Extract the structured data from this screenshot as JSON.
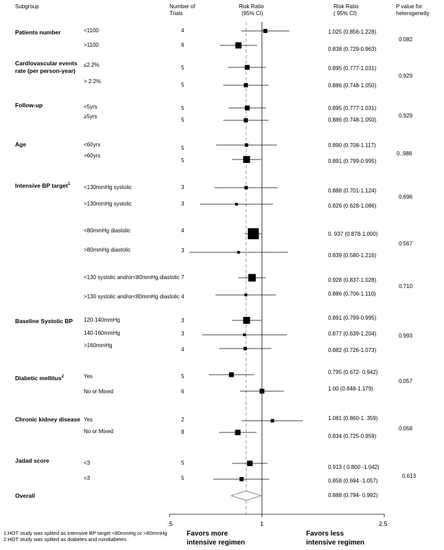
{
  "headers": {
    "subgroup": "Subgroup",
    "trials_line1": "Number of",
    "trials_line2": "Trials",
    "rr_plot_line1": "Risk Ratio",
    "rr_plot_line2": "(95% CI)",
    "rr_text_line1": "Risk Ratio",
    "rr_text_line2": "( 95% CI)",
    "p_line1": "P value for",
    "p_line2": "heterogeneity"
  },
  "groups": [
    {
      "label": "Patients number"
    },
    {
      "label": "Cardiovascular events",
      "label2": "rate (per person-year)"
    },
    {
      "label": "Follow-up"
    },
    {
      "label": "Age"
    },
    {
      "label": "Intensive BP target",
      "sup": "1"
    },
    {
      "label": "Baseline Systolic BP"
    },
    {
      "label": "Diabetic mellitus",
      "sup": "2"
    },
    {
      "label": "Chronic kidney disease"
    },
    {
      "label": "Jadad score"
    },
    {
      "label": "Overall"
    }
  ],
  "p_values": [
    "0.082",
    "0.929",
    "0.929",
    "0..988",
    "0.696",
    "0.567",
    "0.710",
    "0.993",
    "0.057",
    "0.058",
    "0.613"
  ],
  "chart_data": {
    "type": "forest",
    "x_scale": "log",
    "xlim": [
      0.5,
      2.5
    ],
    "x_ticks": [
      ".5",
      "1",
      "2.5"
    ],
    "null_line": 1,
    "pooled_line": 0.888,
    "rows": [
      {
        "sub": "<1100",
        "trials": "4",
        "rr": 1.025,
        "lo": 0.856,
        "hi": 1.228,
        "ci_text": "1.025  (0.856-1.228)"
      },
      {
        "sub": ">1100",
        "trials": "6",
        "rr": 0.838,
        "lo": 0.729,
        "hi": 0.963,
        "ci_text": "0.838  (0.729-0.963)"
      },
      {
        "sub": "≤2.2%",
        "trials": "5",
        "rr": 0.895,
        "lo": 0.777,
        "hi": 1.031,
        "ci_text": "0.895  (0.777-1.031)"
      },
      {
        "sub": "> 2.2%",
        "trials": "5",
        "rr": 0.886,
        "lo": 0.748,
        "hi": 1.05,
        "ci_text": "0.886  (0.748-1.050)"
      },
      {
        "sub": "<5yrs",
        "trials": "5",
        "rr": 0.895,
        "lo": 0.777,
        "hi": 1.031,
        "ci_text": "0.895  (0.777-1.031)"
      },
      {
        "sub": "≥5yrs",
        "trials": "5",
        "rr": 0.886,
        "lo": 0.748,
        "hi": 1.05,
        "ci_text": "0.886  (0.748-1.050)"
      },
      {
        "sub": "<60yrs",
        "trials": "5",
        "rr": 0.89,
        "lo": 0.708,
        "hi": 1.117,
        "ci_text": "0.890  (0.708-1.117)"
      },
      {
        "sub": ">60yrs",
        "trials": "5",
        "rr": 0.891,
        "lo": 0.799,
        "hi": 0.995,
        "ci_text": "0.891  (0.799-0.995)"
      },
      {
        "sub": "<130mmHg systolic",
        "trials": "3",
        "rr": 0.888,
        "lo": 0.701,
        "hi": 1.124,
        "ci_text": "0.888  (0.701-1.124)"
      },
      {
        "sub": ">130mmHg systolic",
        "trials": "3",
        "rr": 0.826,
        "lo": 0.628,
        "hi": 1.086,
        "ci_text": "0.826  (0.628-1.086)"
      },
      {
        "sub": "<80mmHg diastolic",
        "trials": "4",
        "rr": 0.937,
        "lo": 0.878,
        "hi": 1.0,
        "ci_text": "0. 937  (0.878-1.000)"
      },
      {
        "sub": ">80mmHg diastolic",
        "trials": "3",
        "rr": 0.839,
        "lo": 0.58,
        "hi": 1.216,
        "ci_text": "0.839  (0.580-1.216)"
      },
      {
        "sub": "<130 systolic and/or<80mmHg diastolic",
        "trials": "7",
        "rr": 0.928,
        "lo": 0.837,
        "hi": 1.028,
        "ci_text": "0.928  (0.837-1.028)"
      },
      {
        "sub": ">130 systolic and/or<80mmHg diastolic",
        "trials": "4",
        "rr": 0.886,
        "lo": 0.706,
        "hi": 1.11,
        "ci_text": "0.886  (0.706-1.110)"
      },
      {
        "sub": "120-140mmHg",
        "trials": "3",
        "rr": 0.891,
        "lo": 0.799,
        "hi": 0.995,
        "ci_text": "0.891  (0.799-0.995)"
      },
      {
        "sub": "140-160mmHg",
        "trials": "3",
        "rr": 0.877,
        "lo": 0.639,
        "hi": 1.204,
        "ci_text": "0.877  (0.639-1.204)"
      },
      {
        "sub": ">160mmHg",
        "trials": "4",
        "rr": 0.882,
        "lo": 0.726,
        "hi": 1.073,
        "ci_text": "0.882  (0.726-1.073)"
      },
      {
        "sub": "Yes",
        "trials": "5",
        "rr": 0.795,
        "lo": 0.672,
        "hi": 0.942,
        "ci_text": "0.795  (0.672- 0.942)"
      },
      {
        "sub": "No or Mixed",
        "trials": "6",
        "rr": 1.0,
        "lo": 0.848,
        "hi": 1.179,
        "ci_text": "1.00  (0.848-1.179)"
      },
      {
        "sub": "Yes",
        "trials": "2",
        "rr": 1.081,
        "lo": 0.86,
        "hi": 1.359,
        "ci_text": "1.081  (0.860-1. 359)"
      },
      {
        "sub": "No or Mixed",
        "trials": "8",
        "rr": 0.834,
        "lo": 0.725,
        "hi": 0.959,
        "ci_text": "0.834  (0.725-0.959)"
      },
      {
        "sub": "<3",
        "trials": "5",
        "rr": 0.913,
        "lo": 0.8,
        "hi": 1.042,
        "ci_text": "0.913  ( 0.800 -1.042)"
      },
      {
        "sub": "=3",
        "trials": "5",
        "rr": 0.858,
        "lo": 0.694,
        "hi": 1.057,
        "ci_text": "0.858  (0.694 -1.057)"
      }
    ],
    "overall": {
      "rr": 0.888,
      "lo": 0.794,
      "hi": 0.992,
      "ci_text": "0.888  (0.794- 0.992)"
    }
  },
  "favors_left_line1": "Favors more",
  "favors_left_line2": "intensive regimen",
  "favors_right_line1": "Favors less",
  "favors_right_line2": "intensive regimen",
  "footnote1": "1:HOT study was splited as intensive BP target <80mmHg or >80mmHg",
  "footnote2": "2:HOT study was splited as diabetes and nondiabetes"
}
